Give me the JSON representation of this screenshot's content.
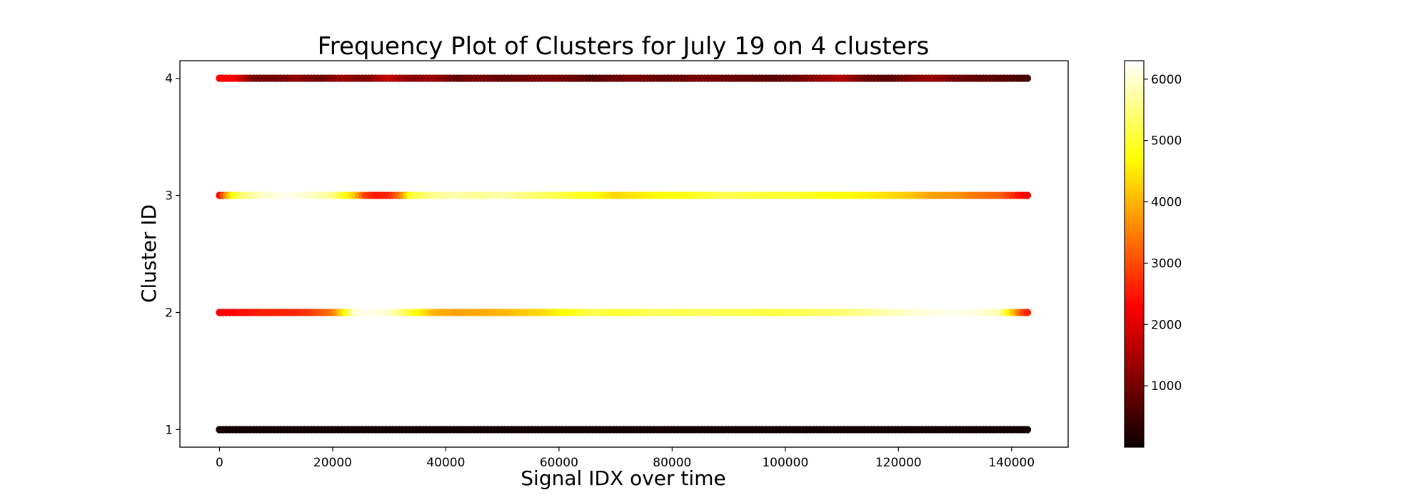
{
  "chart_data": {
    "type": "scatter",
    "title": "Frequency Plot of Clusters for July 19 on 4 clusters",
    "xlabel": "Signal IDX over time",
    "ylabel": "Cluster ID",
    "xlim": [
      -7000,
      150000
    ],
    "ylim": [
      0.85,
      4.15
    ],
    "x_ticks": [
      0,
      20000,
      40000,
      60000,
      80000,
      100000,
      120000,
      140000
    ],
    "x_tick_labels": [
      "0",
      "20000",
      "40000",
      "60000",
      "80000",
      "100000",
      "120000",
      "140000"
    ],
    "y_ticks": [
      1,
      2,
      3,
      4
    ],
    "y_tick_labels": [
      "1",
      "2",
      "3",
      "4"
    ],
    "grid": false,
    "colormap": "hot",
    "colorbar": {
      "range": [
        0,
        6300
      ],
      "ticks": [
        1000,
        2000,
        3000,
        4000,
        5000,
        6000
      ],
      "tick_labels": [
        "1000",
        "2000",
        "3000",
        "4000",
        "5000",
        "6000"
      ]
    },
    "series": [
      {
        "cluster": 4,
        "x": [
          0,
          3000,
          6000,
          10000,
          14000,
          18000,
          22000,
          26000,
          30000,
          34000,
          38000,
          42000,
          46000,
          50000,
          54000,
          58000,
          62000,
          66000,
          70000,
          74000,
          78000,
          82000,
          86000,
          90000,
          94000,
          98000,
          102000,
          106000,
          110000,
          114000,
          118000,
          122000,
          126000,
          130000,
          134000,
          138000,
          141000,
          143000
        ],
        "color_values": [
          2300,
          2100,
          1000,
          900,
          1200,
          900,
          1300,
          1000,
          1700,
          1100,
          1300,
          800,
          1000,
          800,
          900,
          1000,
          900,
          600,
          900,
          1000,
          800,
          900,
          1000,
          900,
          800,
          700,
          900,
          1200,
          1500,
          900,
          700,
          1000,
          1300,
          900,
          800,
          700,
          600,
          500
        ]
      },
      {
        "cluster": 3,
        "x": [
          0,
          2000,
          4000,
          8000,
          12000,
          16000,
          20000,
          24000,
          26000,
          28000,
          30000,
          32000,
          34000,
          38000,
          42000,
          46000,
          50000,
          54000,
          58000,
          62000,
          66000,
          70000,
          74000,
          78000,
          82000,
          86000,
          90000,
          94000,
          98000,
          102000,
          106000,
          110000,
          114000,
          118000,
          122000,
          126000,
          130000,
          134000,
          138000,
          140000,
          142000,
          143000
        ],
        "color_values": [
          2400,
          4500,
          5400,
          6000,
          6200,
          6000,
          5600,
          4200,
          2800,
          2500,
          2600,
          3400,
          5000,
          5600,
          5800,
          5600,
          5800,
          5500,
          5300,
          5000,
          4800,
          4300,
          4500,
          4700,
          4800,
          5000,
          5200,
          5100,
          5000,
          5000,
          4800,
          4700,
          4600,
          4400,
          4200,
          3800,
          3700,
          3400,
          3200,
          2800,
          2300,
          2100
        ]
      },
      {
        "cluster": 2,
        "x": [
          0,
          4000,
          8000,
          12000,
          16000,
          20000,
          22000,
          24000,
          26000,
          30000,
          34000,
          38000,
          42000,
          46000,
          50000,
          54000,
          58000,
          62000,
          66000,
          70000,
          74000,
          78000,
          82000,
          86000,
          90000,
          94000,
          98000,
          102000,
          106000,
          110000,
          114000,
          118000,
          122000,
          126000,
          130000,
          134000,
          138000,
          140000,
          142000,
          143000
        ],
        "color_values": [
          2200,
          2400,
          2600,
          2600,
          2800,
          3400,
          4500,
          6000,
          6200,
          6000,
          5000,
          4000,
          3800,
          3900,
          4000,
          4200,
          4400,
          4800,
          5200,
          5000,
          5100,
          5300,
          5200,
          5300,
          5200,
          5200,
          5100,
          5200,
          5300,
          5400,
          5600,
          5800,
          6000,
          6100,
          6200,
          6100,
          5800,
          4400,
          3000,
          2500
        ]
      },
      {
        "cluster": 1,
        "x": [
          0,
          4000,
          8000,
          12000,
          16000,
          20000,
          24000,
          28000,
          32000,
          36000,
          40000,
          44000,
          48000,
          52000,
          56000,
          60000,
          64000,
          68000,
          72000,
          76000,
          80000,
          84000,
          88000,
          92000,
          96000,
          100000,
          104000,
          108000,
          112000,
          116000,
          120000,
          124000,
          128000,
          132000,
          136000,
          140000,
          143000
        ],
        "color_values": [
          100,
          80,
          90,
          70,
          60,
          80,
          90,
          70,
          60,
          50,
          70,
          60,
          80,
          90,
          70,
          60,
          50,
          60,
          70,
          80,
          90,
          70,
          60,
          50,
          60,
          70,
          80,
          60,
          50,
          70,
          80,
          90,
          70,
          60,
          50,
          60,
          70
        ]
      }
    ]
  }
}
